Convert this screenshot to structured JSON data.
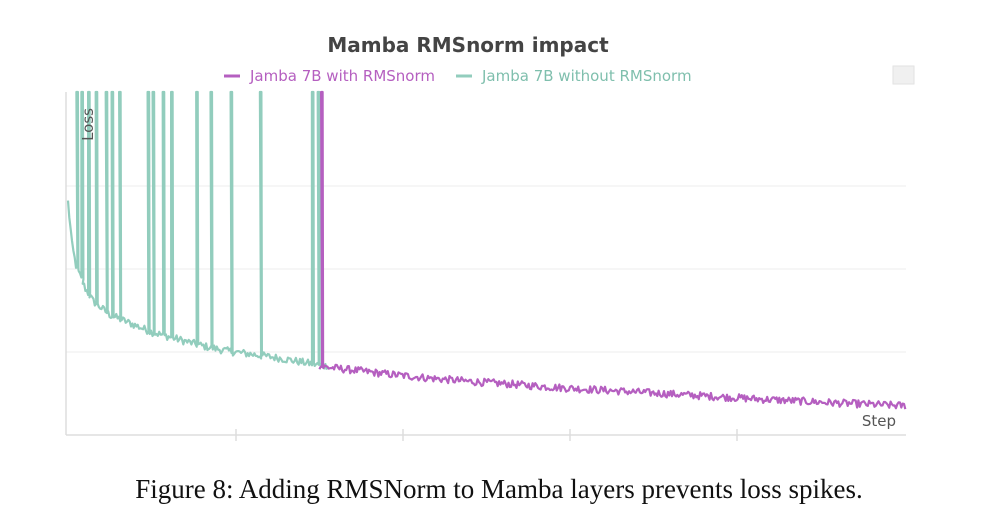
{
  "figure": {
    "caption": "Figure 8: Adding RMSNorm to Mamba layers prevents loss spikes."
  },
  "chart_data": {
    "type": "line",
    "title": "Mamba RMSnorm impact",
    "xlabel": "Step",
    "ylabel": "Loss",
    "grid": true,
    "legend_position": "top-center",
    "xlim": [
      0,
      1
    ],
    "ylim": [
      0,
      1
    ],
    "series": [
      {
        "name": "Jamba 7B with RMSnorm",
        "color": "#b55fc0",
        "x": [
          0.3,
          0.33,
          0.38,
          0.43,
          0.48,
          0.53,
          0.58,
          0.63,
          0.68,
          0.73,
          0.78,
          0.83,
          0.88,
          0.92,
          0.96,
          1.0
        ],
        "y": [
          0.2,
          0.192,
          0.178,
          0.166,
          0.156,
          0.148,
          0.139,
          0.132,
          0.125,
          0.118,
          0.111,
          0.104,
          0.098,
          0.093,
          0.089,
          0.085
        ],
        "spikes": [
          {
            "x": 0.302,
            "y": 1.0
          }
        ]
      },
      {
        "name": "Jamba 7B without RMSnorm",
        "color": "#92cdbd",
        "x": [
          0.0,
          0.005,
          0.01,
          0.02,
          0.03,
          0.05,
          0.07,
          0.1,
          0.13,
          0.16,
          0.19,
          0.22,
          0.25,
          0.28,
          0.31
        ],
        "y": [
          0.68,
          0.55,
          0.49,
          0.43,
          0.39,
          0.35,
          0.33,
          0.3,
          0.28,
          0.26,
          0.245,
          0.235,
          0.225,
          0.212,
          0.2
        ],
        "spikes": [
          {
            "x": 0.01,
            "y": 1.0
          },
          {
            "x": 0.016,
            "y": 1.0
          },
          {
            "x": 0.024,
            "y": 1.0
          },
          {
            "x": 0.033,
            "y": 1.0
          },
          {
            "x": 0.045,
            "y": 1.0
          },
          {
            "x": 0.052,
            "y": 1.0
          },
          {
            "x": 0.061,
            "y": 1.0
          },
          {
            "x": 0.095,
            "y": 1.0
          },
          {
            "x": 0.101,
            "y": 1.0
          },
          {
            "x": 0.113,
            "y": 1.0
          },
          {
            "x": 0.123,
            "y": 1.0
          },
          {
            "x": 0.153,
            "y": 1.0
          },
          {
            "x": 0.17,
            "y": 1.0
          },
          {
            "x": 0.194,
            "y": 1.0
          },
          {
            "x": 0.229,
            "y": 1.0
          },
          {
            "x": 0.291,
            "y": 1.0
          },
          {
            "x": 0.298,
            "y": 1.0
          }
        ]
      }
    ]
  }
}
